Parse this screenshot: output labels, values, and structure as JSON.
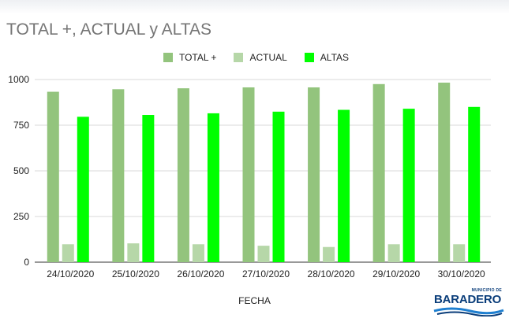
{
  "chart_data": {
    "type": "bar",
    "title": "TOTAL +, ACTUAL y ALTAS",
    "xlabel": "FECHA",
    "ylabel": "",
    "ylim": [
      0,
      1000
    ],
    "yticks": [
      "0",
      "250",
      "500",
      "750",
      "1000"
    ],
    "grid": true,
    "legend": "top",
    "categories": [
      "24/10/2020",
      "25/10/2020",
      "26/10/2020",
      "27/10/2020",
      "28/10/2020",
      "29/10/2020",
      "30/10/2020"
    ],
    "series": [
      {
        "name": "TOTAL +",
        "color": "#93c47d",
        "values": [
          933,
          947,
          952,
          957,
          957,
          975,
          983
        ]
      },
      {
        "name": "ACTUAL",
        "color": "#b6d7a8",
        "values": [
          98,
          103,
          98,
          90,
          83,
          98,
          98
        ]
      },
      {
        "name": "ALTAS",
        "color": "#00ff00",
        "values": [
          796,
          806,
          815,
          824,
          834,
          840,
          850
        ]
      }
    ]
  },
  "logo": {
    "small_text": "MUNICIPIO DE",
    "name": "BARADERO"
  }
}
